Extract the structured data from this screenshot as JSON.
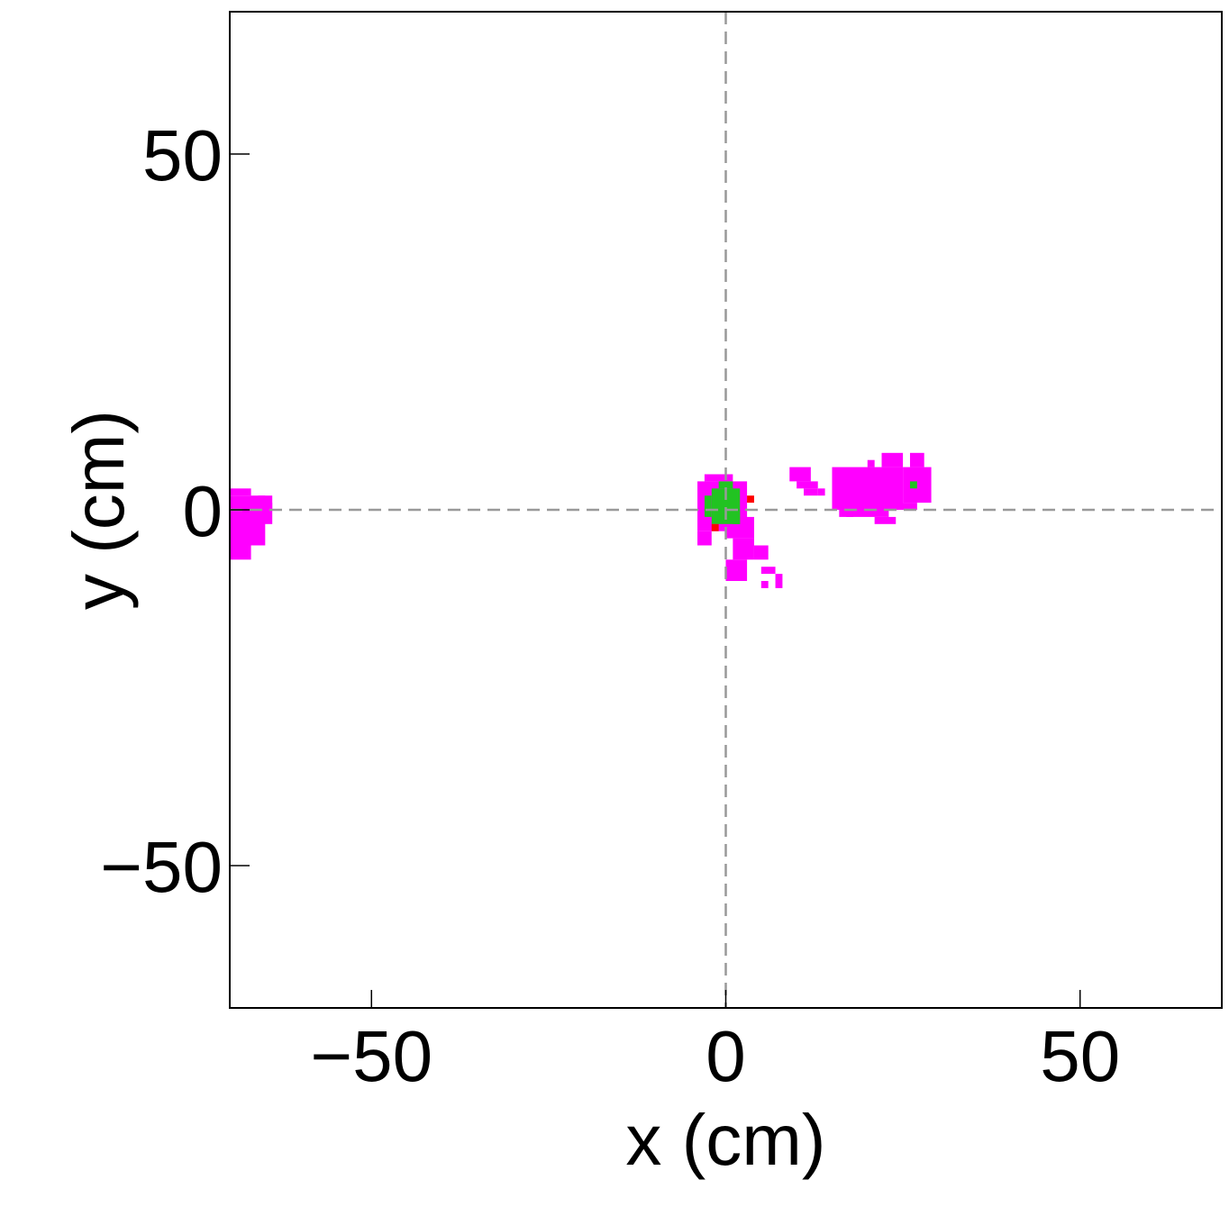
{
  "chart_data": {
    "type": "heatmap",
    "title": "",
    "xlabel": "x (cm)",
    "ylabel": "y (cm)",
    "xlim": [
      -70,
      70
    ],
    "ylim": [
      -70,
      70
    ],
    "cell_size": 1,
    "x_ticks": [
      {
        "value": -50,
        "label": "−50"
      },
      {
        "value": 0,
        "label": "0"
      },
      {
        "value": 50,
        "label": "50"
      }
    ],
    "y_ticks": [
      {
        "value": -50,
        "label": "−50"
      },
      {
        "value": 0,
        "label": "0"
      },
      {
        "value": 50,
        "label": "50"
      }
    ],
    "reference_lines": {
      "x": 0,
      "y": 0,
      "style": "dashed",
      "color": "#999999"
    },
    "grid": false,
    "colors": {
      "magenta": "#ff00ff",
      "green": "#22c322",
      "red": "#ff0000",
      "reference": "#999999"
    },
    "regions": [
      {
        "color": "magenta",
        "rects": [
          [
            -70,
            -5,
            5,
            7
          ],
          [
            -70,
            2,
            3,
            1
          ],
          [
            -70,
            -7,
            3,
            2
          ],
          [
            -66,
            -2,
            2,
            4
          ],
          [
            -65,
            0,
            1,
            1
          ]
        ]
      },
      {
        "color": "magenta",
        "rects": [
          [
            -4,
            -3,
            7,
            7
          ],
          [
            -3,
            4,
            4,
            1
          ],
          [
            -4,
            -5,
            2,
            2
          ],
          [
            0,
            -4,
            4,
            3
          ],
          [
            1,
            -7,
            3,
            3
          ],
          [
            4,
            -7,
            2,
            2
          ],
          [
            0,
            -10,
            3,
            3
          ],
          [
            5,
            -9,
            2,
            1
          ],
          [
            7,
            -11,
            1,
            2
          ],
          [
            5,
            -11,
            1,
            1
          ]
        ]
      },
      {
        "color": "magenta",
        "rects": [
          [
            9,
            4,
            3,
            2
          ],
          [
            10,
            3,
            3,
            1
          ],
          [
            11,
            2,
            2,
            1
          ],
          [
            13,
            2,
            1,
            1
          ]
        ]
      },
      {
        "color": "magenta",
        "rects": [
          [
            15,
            0,
            10,
            6
          ],
          [
            16,
            -1,
            7,
            1
          ],
          [
            21,
            -2,
            3,
            1
          ],
          [
            25,
            1,
            4,
            5
          ],
          [
            24,
            0,
            3,
            1
          ],
          [
            26,
            6,
            2,
            2
          ],
          [
            22,
            6,
            3,
            2
          ],
          [
            20,
            6,
            1,
            1
          ],
          [
            17,
            -1,
            1,
            1
          ]
        ]
      },
      {
        "color": "green",
        "rects": [
          [
            -2,
            -2,
            4,
            5
          ],
          [
            -3,
            -1,
            1,
            3
          ],
          [
            -1,
            3,
            2,
            1
          ],
          [
            1,
            -2,
            1,
            2
          ],
          [
            26,
            3,
            1,
            1
          ]
        ]
      },
      {
        "color": "red",
        "rects": [
          [
            3,
            1,
            1,
            1
          ],
          [
            -2,
            -3,
            1,
            1
          ]
        ]
      }
    ]
  }
}
